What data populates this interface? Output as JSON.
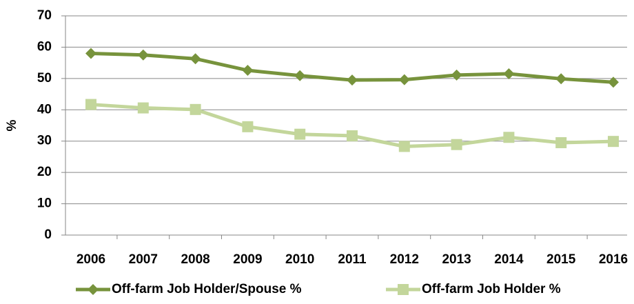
{
  "chart_data": {
    "type": "line",
    "y_label": "%",
    "categories": [
      "2006",
      "2007",
      "2008",
      "2009",
      "2010",
      "2011",
      "2012",
      "2013",
      "2014",
      "2015",
      "2016"
    ],
    "series": [
      {
        "name": "Off-farm Job Holder/Spouse %",
        "color": "#77933c",
        "marker": "diamond",
        "values": [
          58,
          57.5,
          56.3,
          52.6,
          50.9,
          49.5,
          49.6,
          51.1,
          51.5,
          49.9,
          48.8
        ]
      },
      {
        "name": "Off-farm Job Holder %",
        "color": "#c3d69b",
        "marker": "square",
        "values": [
          41.7,
          40.6,
          40.1,
          34.6,
          32.2,
          31.7,
          28.3,
          28.9,
          31.2,
          29.5,
          29.9
        ]
      }
    ],
    "ylim": [
      0,
      70
    ],
    "yticks": [
      0,
      10,
      20,
      30,
      40,
      50,
      60,
      70
    ],
    "grid": true,
    "legend": "bottom"
  }
}
